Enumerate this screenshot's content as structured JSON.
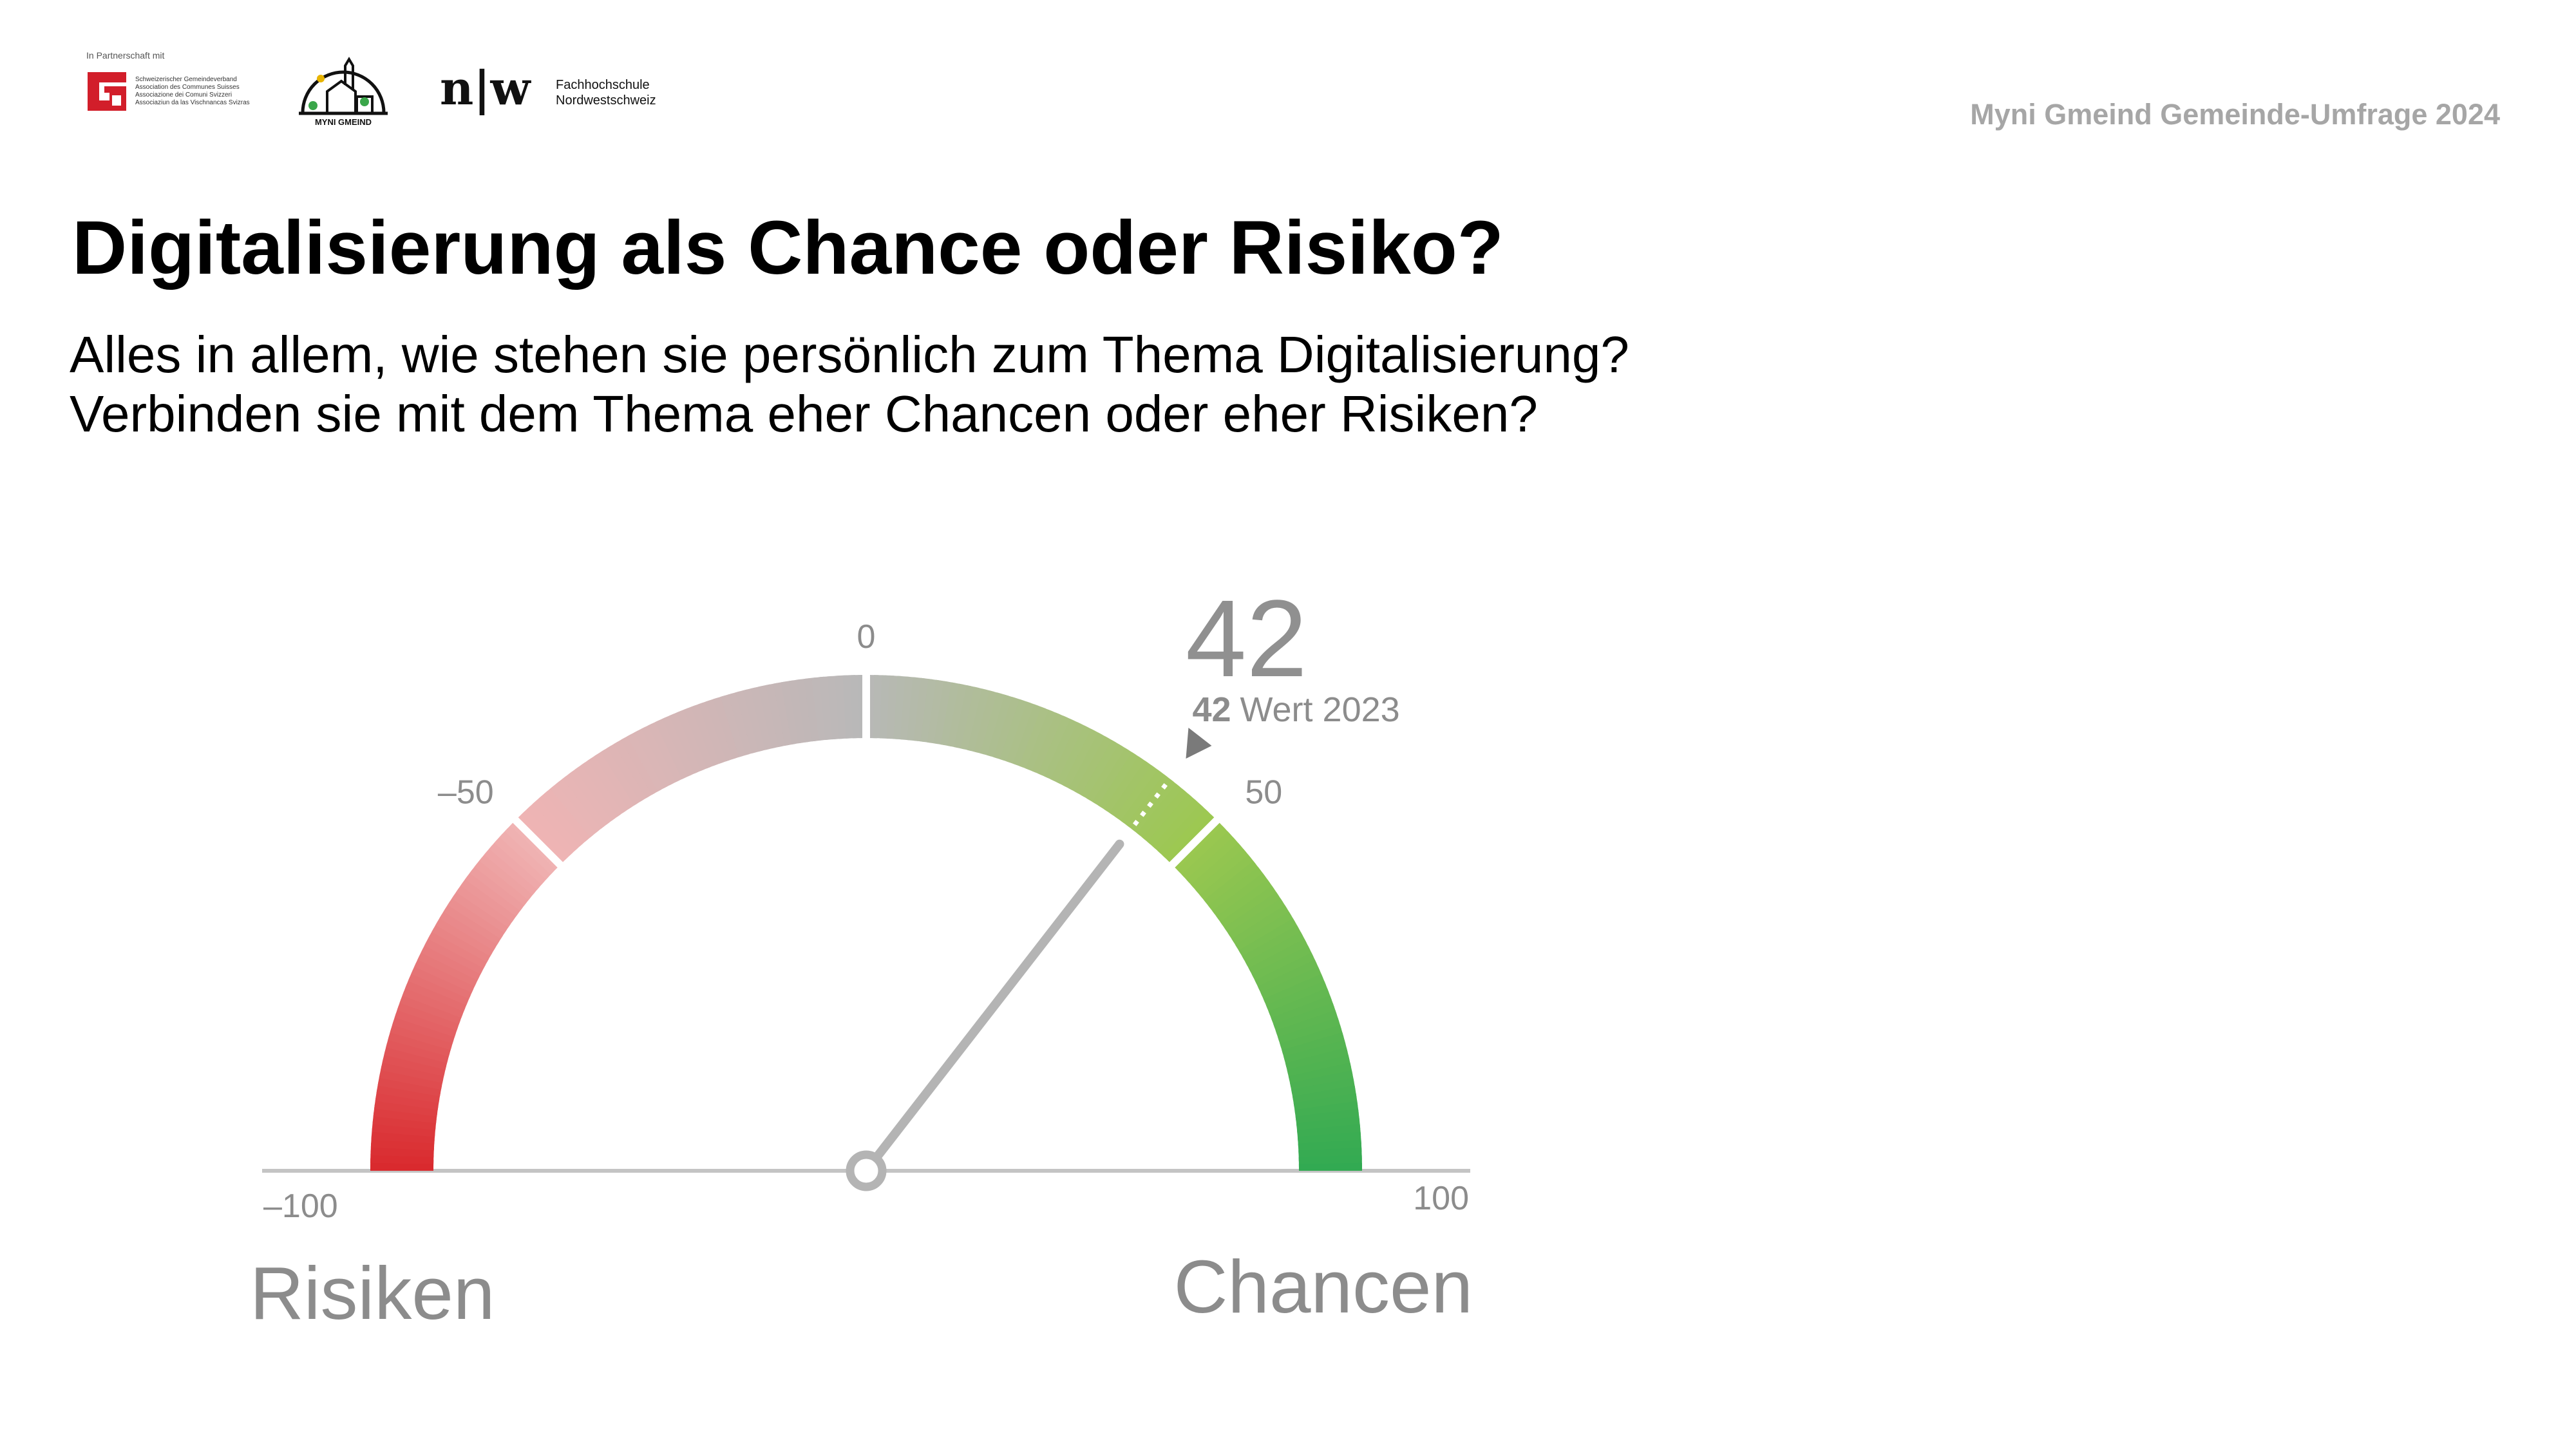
{
  "header": {
    "partner_label": "In Partnerschaft mit",
    "sgv_lines": [
      "Schweizerischer Gemeindeverband",
      "Association des Communes Suisses",
      "Associazione dei Comuni Svizzeri",
      "Associaziun da las Vischnancas Svizras"
    ],
    "myni_gmeind_logo": "MYNI GMEIND",
    "fhnw_mark": "n|w",
    "fhnw_line1": "Fachhochschule",
    "fhnw_line2": "Nordwestschweiz",
    "survey_label": "Myni Gmeind Gemeinde-Umfrage 2024"
  },
  "title": "Digitalisierung als Chance oder Risiko?",
  "question_lines": [
    "Alles in allem, wie stehen sie persönlich zum Thema Digitalisierung?",
    "Verbinden sie mit dem Thema eher Chancen oder eher Risiken?"
  ],
  "colors": {
    "red": "#d9282c",
    "pink": "#f0b4b4",
    "neutral": "#b8b8b8",
    "light_green": "#9cc850",
    "green": "#32aa52",
    "needle": "#b4b4b4",
    "label": "#8c8c8c",
    "sgv_red": "#d21e2a"
  },
  "chart_data": {
    "type": "gauge",
    "min": -100,
    "max": 100,
    "value": 42,
    "value_label": "42",
    "previous": {
      "value": 42,
      "value_text": "42",
      "label": "Wert 2023"
    },
    "ticks": [
      {
        "value": -100,
        "label": "–100"
      },
      {
        "value": -50,
        "label": "–50"
      },
      {
        "value": 0,
        "label": "0"
      },
      {
        "value": 50,
        "label": "50"
      },
      {
        "value": 100,
        "label": "100"
      }
    ],
    "left_label": "Risiken",
    "right_label": "Chancen"
  }
}
